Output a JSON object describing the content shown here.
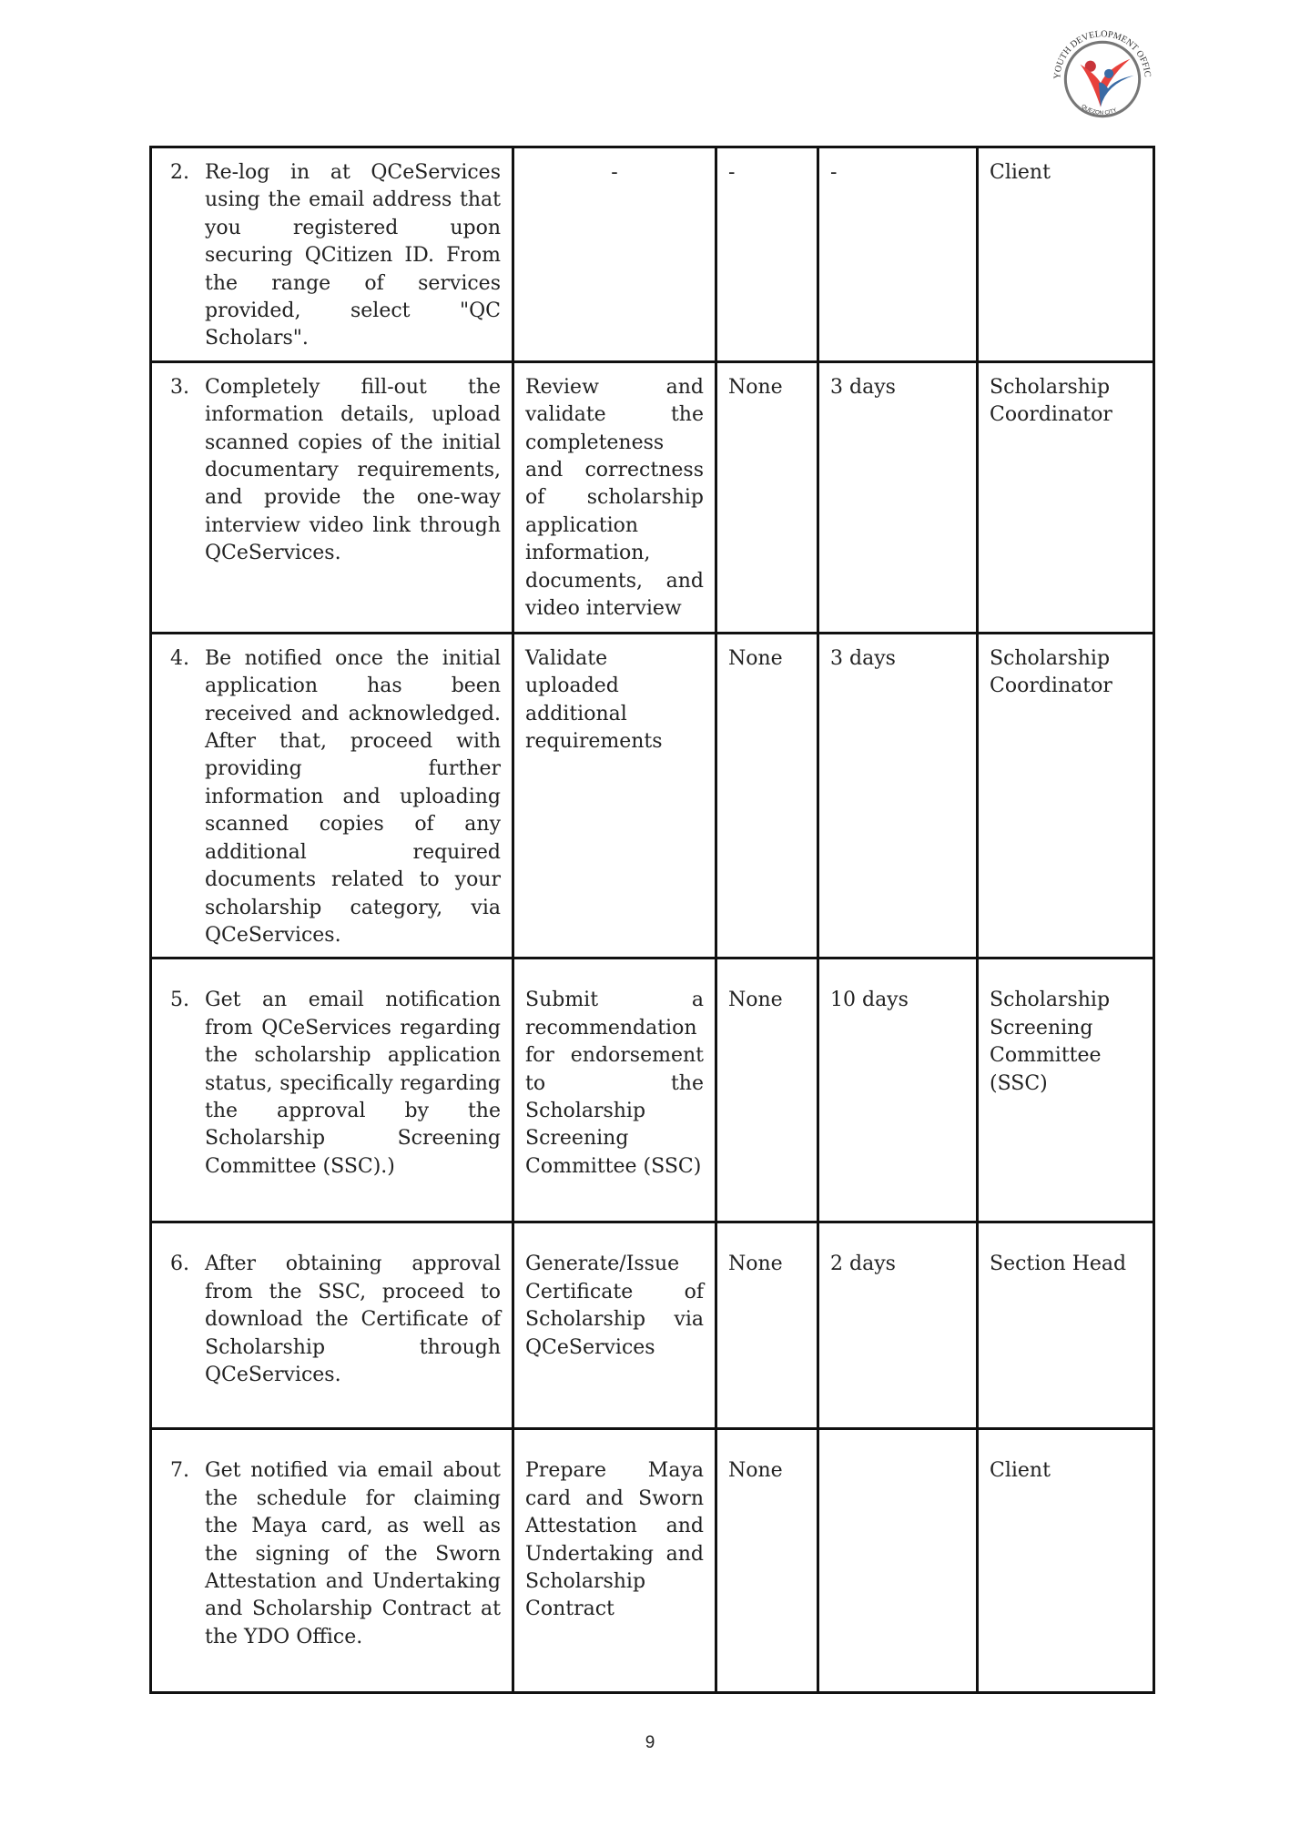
{
  "logo": {
    "text": "YOUTH DEVELOPMENT OFFICE",
    "subtext": "QUEZON CITY",
    "colors": {
      "red": "#e8413c",
      "blue": "#3a6ba5",
      "ring": "#777777"
    }
  },
  "rows": [
    {
      "num": "2.",
      "client_step": "Re-log in at QCeServices using the email address that you registered upon securing QCitizen ID. From the range of services provided, select \"QC Scholars\".",
      "agency_action": "-",
      "fees": "-",
      "time": "-",
      "person": "Client"
    },
    {
      "num": "3.",
      "client_step": "Completely fill-out the information details, upload scanned copies of the initial documentary requirements, and provide the one-way interview video link through QCeServices.",
      "agency_action": "Review and validate the completeness and correctness of scholarship application information, documents, and video interview",
      "fees": "None",
      "time": "3 days",
      "person": "Scholarship Coordinator"
    },
    {
      "num": "4.",
      "client_step": "Be notified once the initial application has been received and acknowledged. After that, proceed with providing further information and uploading scanned copies of any additional required documents related to your scholarship category, via QCeServices.",
      "agency_action": "Validate uploaded additional requirements",
      "fees": "None",
      "time": "3 days",
      "person": "Scholarship Coordinator"
    },
    {
      "num": "5.",
      "client_step": "Get an email notification from QCeServices regarding the scholarship application status, specifically regarding the approval by the Scholarship Screening Committee (SSC).)",
      "agency_action": "Submit a recommendation for endorsement to the Scholarship Screening Committee (SSC)",
      "fees": "None",
      "time": "10 days",
      "person": "Scholarship Screening Committee (SSC)"
    },
    {
      "num": "6.",
      "client_step": "After obtaining approval from the SSC, proceed to download the Certificate of Scholarship through QCeServices.",
      "agency_action": "Generate/Issue Certificate of Scholarship via QCeServices",
      "fees": "None",
      "time": "2 days",
      "person": "Section Head"
    },
    {
      "num": "7.",
      "client_step": "Get notified via email about the schedule for claiming the Maya card, as well as the signing of the Sworn Attestation and Undertaking and Scholarship Contract at the YDO Office.",
      "agency_action": "Prepare Maya card and Sworn Attestation and Undertaking and Scholarship Contract",
      "fees": "None",
      "time": "",
      "person": "Client"
    }
  ],
  "page_number": "9"
}
